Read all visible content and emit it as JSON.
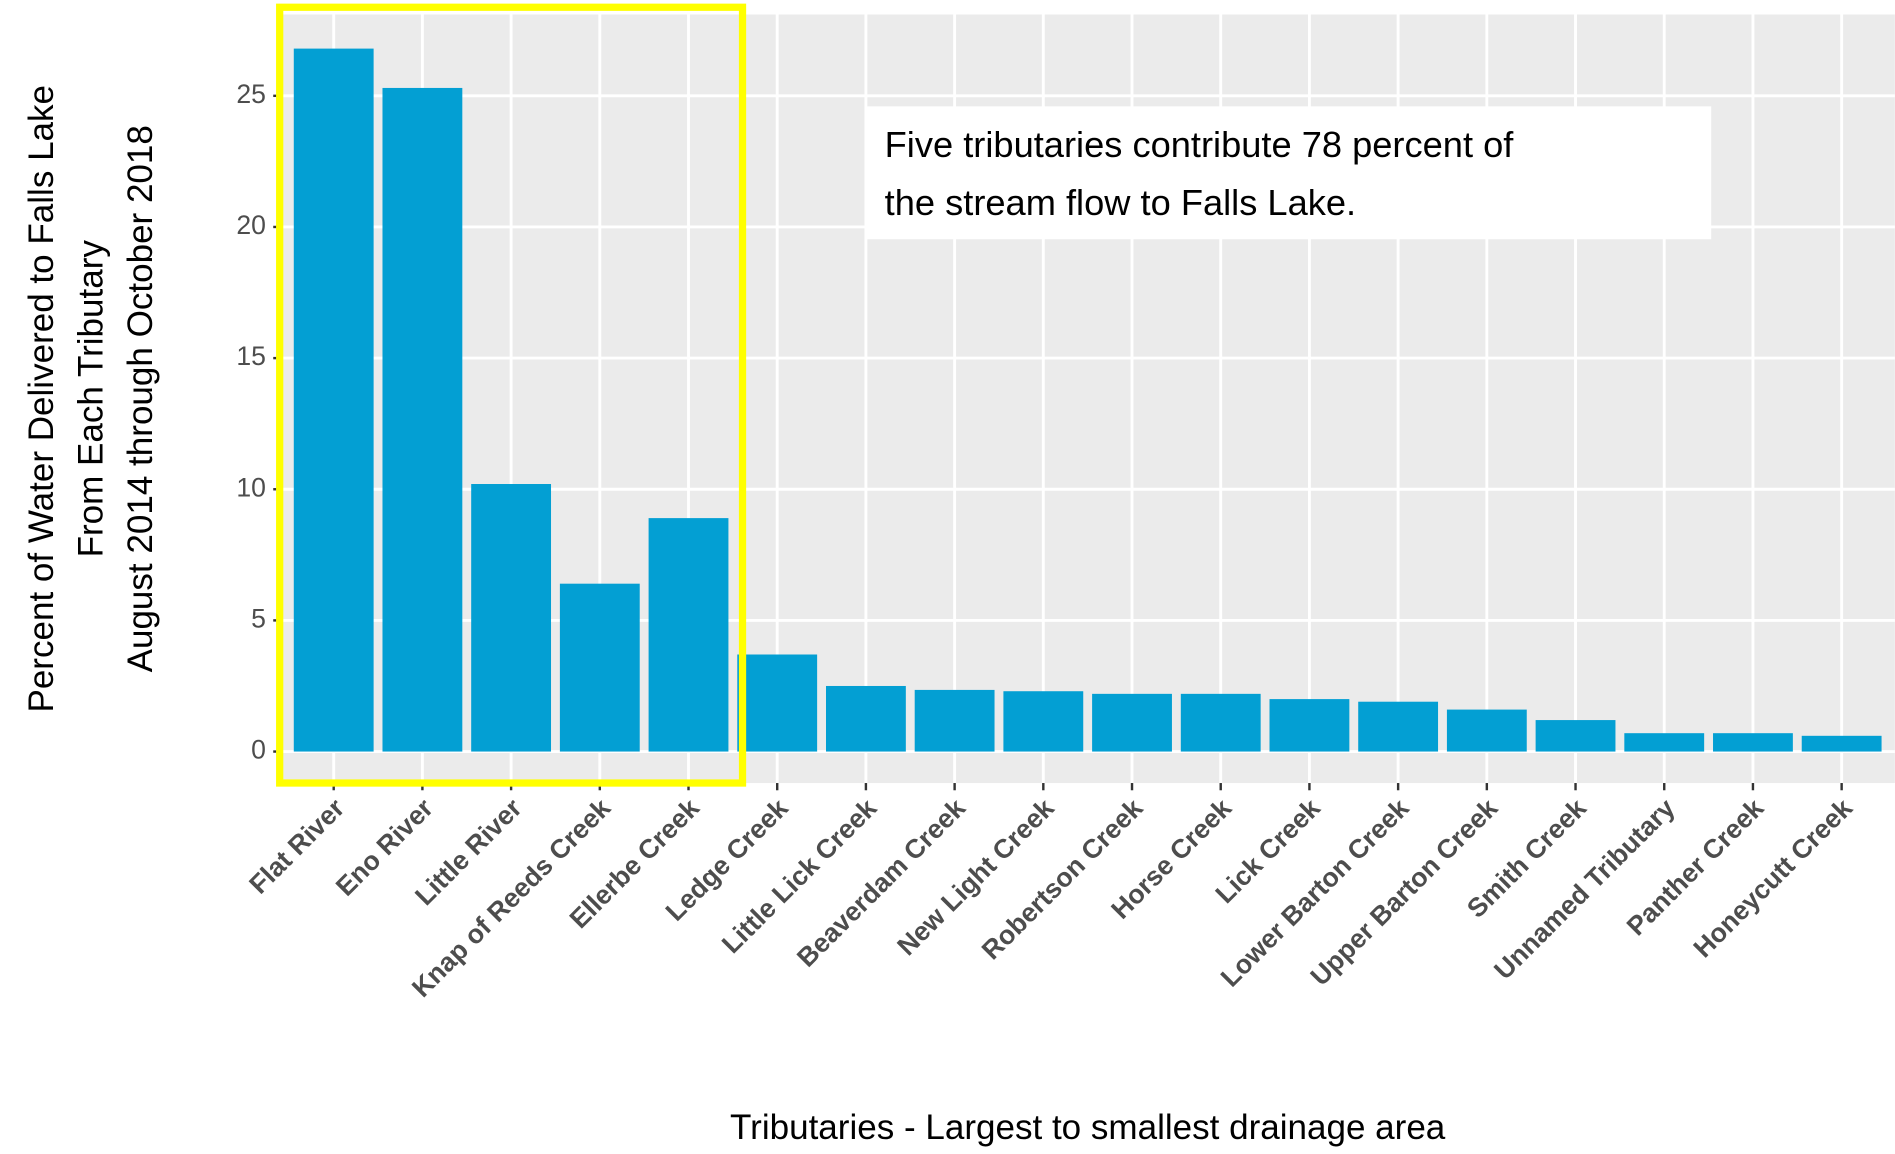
{
  "chart_data": {
    "type": "bar",
    "x_label": "Tributaries - Largest to smallest drainage area",
    "y_label": [
      "Percent of Water Delivered to Falls Lake",
      "From Each Tributary",
      "August 2014 through October 2018"
    ],
    "annotation": [
      "Five tributaries contribute 78 percent of",
      "the stream flow to Falls Lake."
    ],
    "categories": [
      "Flat River",
      "Eno River",
      "Little River",
      "Knap of Reeds Creek",
      "Ellerbe Creek",
      "Ledge Creek",
      "Little Lick Creek",
      "Beaverdam Creek",
      "New Light Creek",
      "Robertson Creek",
      "Horse Creek",
      "Lick Creek",
      "Lower Barton Creek",
      "Upper Barton Creek",
      "Smith Creek",
      "Unnamed Tributary",
      "Panther Creek",
      "Honeycutt Creek"
    ],
    "values": [
      26.8,
      25.3,
      10.2,
      6.4,
      8.9,
      3.7,
      2.5,
      2.35,
      2.3,
      2.2,
      2.2,
      2.0,
      1.9,
      1.6,
      1.2,
      0.7,
      0.7,
      0.6
    ],
    "color": "#039fd3",
    "highlight_color": "#ffff00",
    "ylim": [
      -1.2,
      28.1
    ],
    "yticks": [
      0,
      5,
      10,
      15,
      20,
      25
    ],
    "grid": true
  }
}
